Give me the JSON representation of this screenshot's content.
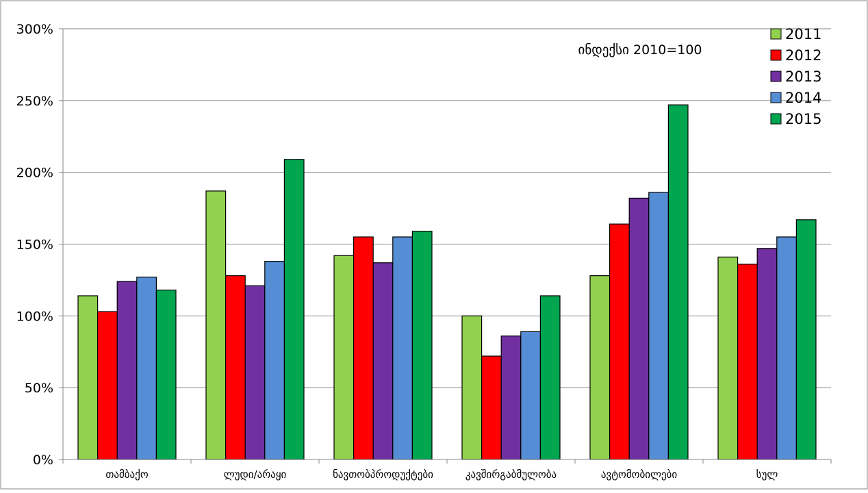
{
  "chart_data": {
    "type": "bar",
    "annotation": "ინდექსი 2010=100",
    "categories": [
      "თამბაქო",
      "ლუდი/არაყი",
      "ნავთობპროდუქტები",
      "კავშირგაბმულობა",
      "ავტომობილები",
      "სულ"
    ],
    "series": [
      {
        "name": "2011",
        "color": "#92d050",
        "values": [
          114,
          187,
          142,
          100,
          128,
          141
        ]
      },
      {
        "name": "2012",
        "color": "#ff0000",
        "values": [
          103,
          128,
          155,
          72,
          164,
          136
        ]
      },
      {
        "name": "2013",
        "color": "#7030a0",
        "values": [
          124,
          121,
          137,
          86,
          182,
          147
        ]
      },
      {
        "name": "2014",
        "color": "#558ed5",
        "values": [
          127,
          138,
          155,
          89,
          186,
          155
        ]
      },
      {
        "name": "2015",
        "color": "#00a550",
        "values": [
          118,
          209,
          159,
          114,
          247,
          167
        ]
      }
    ],
    "ylim": [
      0,
      300
    ],
    "yticks": [
      "0%",
      "50%",
      "100%",
      "150%",
      "200%",
      "250%",
      "300%"
    ],
    "grid": true,
    "legend_position": "top-right"
  }
}
